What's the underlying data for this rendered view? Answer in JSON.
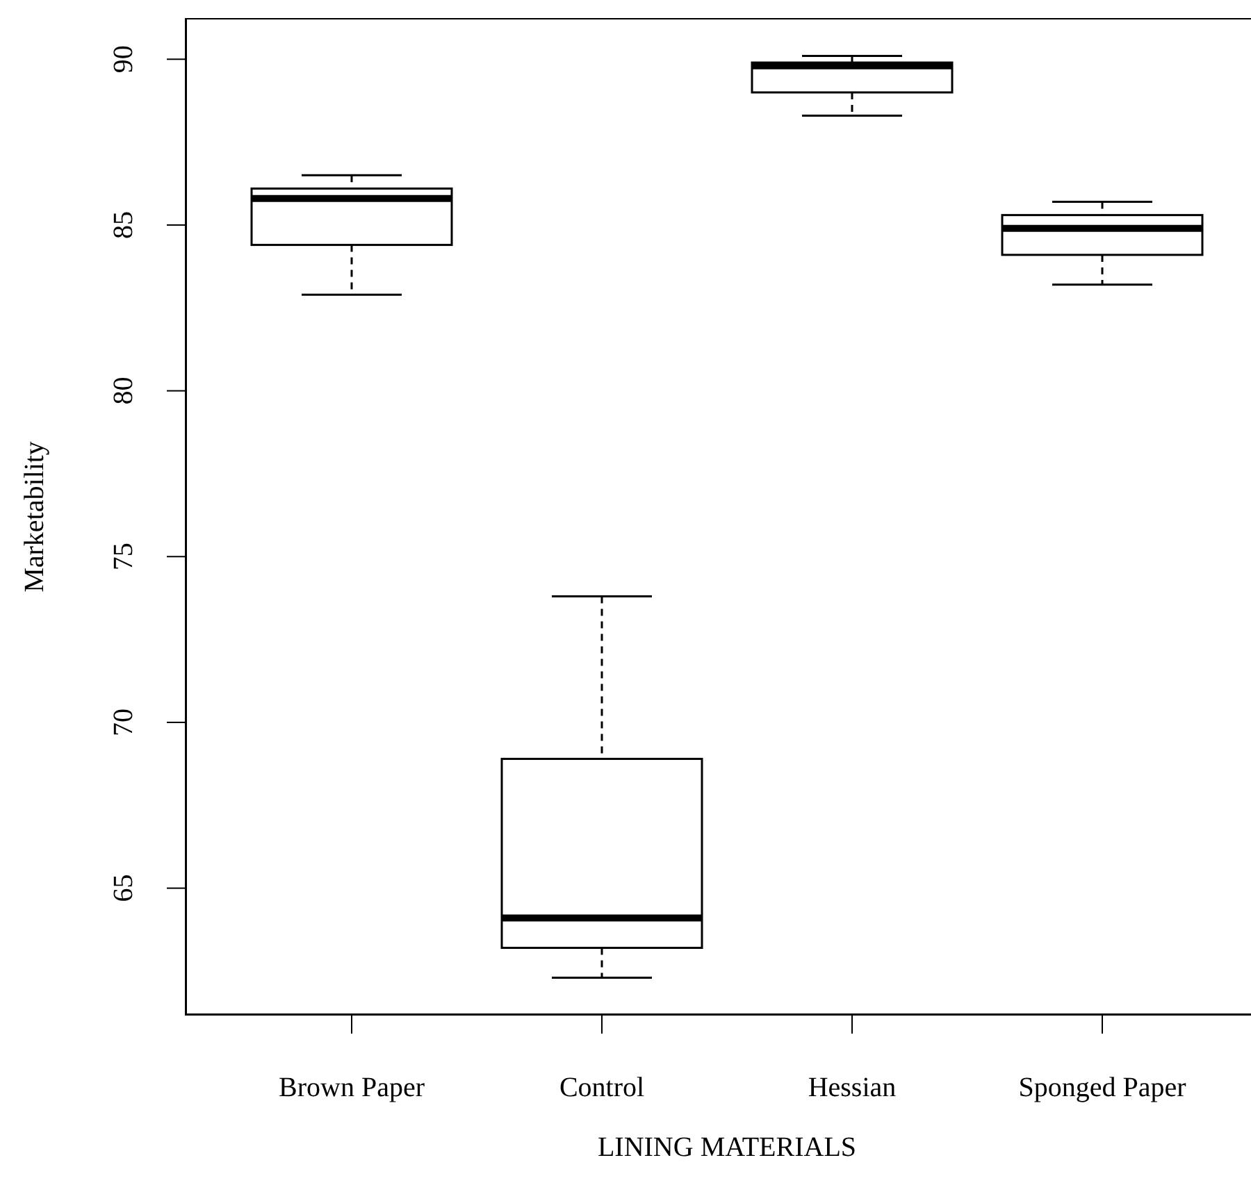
{
  "chart_data": {
    "type": "box",
    "xlabel": "LINING MATERIALS",
    "ylabel": "Marketability",
    "categories": [
      "Brown Paper",
      "Control",
      "Hessian",
      "Sponged Paper"
    ],
    "color": "#000000",
    "boxes": [
      {
        "low": 82.9,
        "q1": 84.4,
        "median": 85.8,
        "q3": 86.1,
        "high": 86.5
      },
      {
        "low": 62.3,
        "q1": 63.2,
        "median": 64.1,
        "q3": 68.9,
        "high": 73.8
      },
      {
        "low": 88.3,
        "q1": 89.0,
        "median": 89.8,
        "q3": 89.9,
        "high": 90.1
      },
      {
        "low": 83.2,
        "q1": 84.1,
        "median": 84.9,
        "q3": 85.3,
        "high": 85.7
      }
    ],
    "ylim": [
      61.2,
      91.2
    ],
    "yticks": [
      65,
      70,
      75,
      80,
      85,
      90
    ]
  }
}
